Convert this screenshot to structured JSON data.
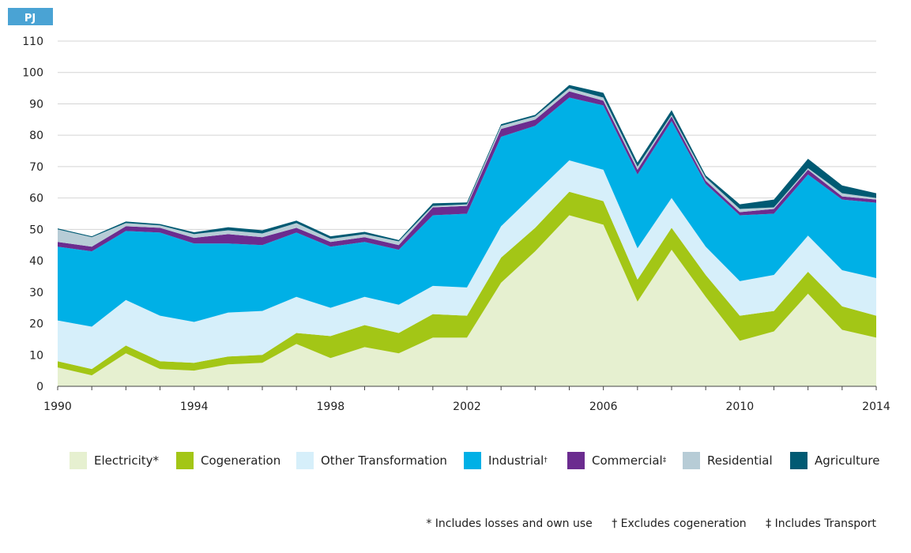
{
  "chart_data": {
    "type": "area",
    "stacked": true,
    "unit_label": "PJ",
    "x": [
      1990,
      1991,
      1992,
      1993,
      1994,
      1995,
      1996,
      1997,
      1998,
      1999,
      2000,
      2001,
      2002,
      2003,
      2004,
      2005,
      2006,
      2007,
      2008,
      2009,
      2010,
      2011,
      2012,
      2013,
      2014
    ],
    "x_ticks": [
      "1990",
      "1994",
      "1998",
      "2002",
      "2006",
      "2010",
      "2014"
    ],
    "y_ticks": [
      "0",
      "10",
      "20",
      "30",
      "40",
      "50",
      "60",
      "70",
      "80",
      "90",
      "100",
      "110"
    ],
    "ylim": [
      0,
      110
    ],
    "grid": true,
    "series": [
      {
        "name": "Electricity",
        "marker": "*",
        "color": "#e6f0d0",
        "values": [
          6,
          3.5,
          10.5,
          5.5,
          5,
          7,
          7.5,
          13.5,
          9,
          12.5,
          10.5,
          15.5,
          15.5,
          33,
          43,
          54.5,
          51.5,
          27,
          43.5,
          28.5,
          14.5,
          17.5,
          29.5,
          18,
          15.5
        ]
      },
      {
        "name": "Cogeneration",
        "marker": "",
        "color": "#a3c616",
        "values": [
          2,
          2,
          2.5,
          2.5,
          2.5,
          2.5,
          2.5,
          3.5,
          7,
          7,
          6.5,
          7.5,
          7,
          8,
          7.5,
          7.5,
          7.5,
          7,
          7,
          7,
          8,
          6.5,
          7,
          7.5,
          7
        ]
      },
      {
        "name": "Other Transformation",
        "marker": "",
        "color": "#d6effa",
        "values": [
          13,
          13.5,
          14.5,
          14.5,
          13,
          14,
          14,
          11.5,
          9,
          9,
          9,
          9,
          9,
          10,
          11,
          10,
          10,
          10,
          9.5,
          9,
          11,
          11.5,
          11.5,
          11.5,
          12
        ]
      },
      {
        "name": "Industrial",
        "marker": "†",
        "color": "#00b0e6",
        "values": [
          23.5,
          24,
          22,
          26.5,
          25,
          22,
          21,
          20.5,
          19.5,
          17.5,
          17.5,
          22.5,
          23.5,
          28.5,
          21.5,
          20,
          20.5,
          23.5,
          24.5,
          20,
          21,
          19.5,
          19.5,
          22.5,
          24
        ]
      },
      {
        "name": "Commercial",
        "marker": "‡",
        "color": "#6b2c8f",
        "values": [
          1.5,
          1.5,
          1.5,
          1.5,
          1.8,
          3,
          2.5,
          1.5,
          1.5,
          1.5,
          1.5,
          2.5,
          2.5,
          2.5,
          2,
          2,
          1.5,
          1.5,
          1.5,
          1,
          1,
          1.5,
          1.5,
          1,
          1
        ]
      },
      {
        "name": "Residential",
        "marker": "",
        "color": "#b7ccd6",
        "values": [
          4,
          3,
          1,
          0.8,
          1.2,
          1.2,
          1.2,
          1.5,
          1,
          1,
          1.2,
          0.5,
          0.5,
          1,
          1,
          1,
          1,
          1,
          0.5,
          1,
          1,
          0.5,
          0.5,
          1,
          0.5
        ]
      },
      {
        "name": "Agriculture",
        "marker": "",
        "color": "#005a73",
        "values": [
          0.3,
          0.3,
          0.5,
          0.4,
          0.6,
          1,
          1,
          0.8,
          0.8,
          0.7,
          0.4,
          0.8,
          0.6,
          0.5,
          0.5,
          1,
          1.5,
          1.3,
          1.5,
          0.7,
          1.5,
          2.5,
          3,
          2.5,
          1.5
        ]
      }
    ]
  },
  "legend": [
    {
      "label": "Electricity",
      "marker": "*"
    },
    {
      "label": "Cogeneration",
      "marker": ""
    },
    {
      "label": "Other Transformation",
      "marker": ""
    },
    {
      "label": "Industrial",
      "marker": "†"
    },
    {
      "label": "Commercial",
      "marker": "‡"
    },
    {
      "label": "Residential",
      "marker": ""
    },
    {
      "label": "Agriculture",
      "marker": ""
    }
  ],
  "footnotes": {
    "note1": "* Includes losses and own use",
    "note2": "† Excludes cogeneration",
    "note3": "‡ Includes Transport"
  }
}
